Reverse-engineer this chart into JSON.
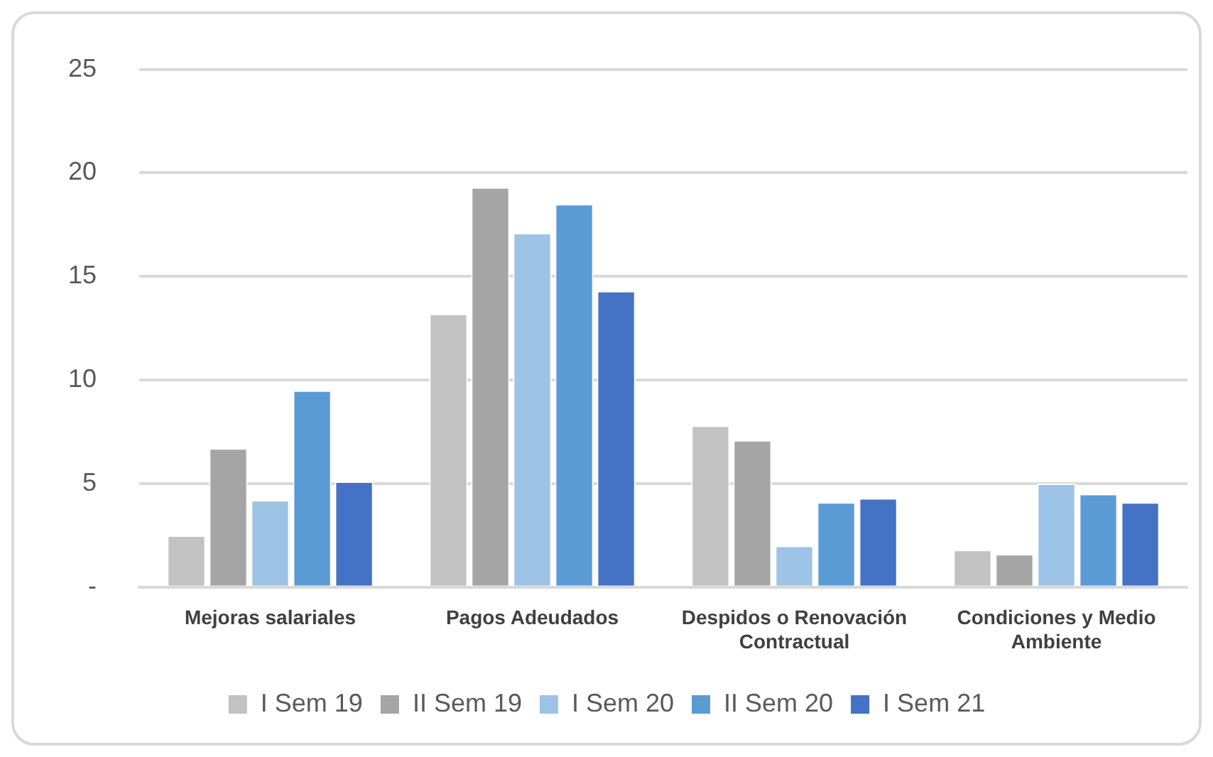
{
  "chart_data": {
    "type": "bar",
    "categories": [
      "Mejoras salariales",
      "Pagos Adeudados",
      "Despidos o Renovación Contractual",
      "Condiciones y Medio Ambiente"
    ],
    "series": [
      {
        "name": "I Sem 19",
        "color": "#c3c2c3",
        "values": [
          2.5,
          13.2,
          7.8,
          1.8
        ]
      },
      {
        "name": "II Sem 19",
        "color": "#a5a5a5",
        "values": [
          6.7,
          19.3,
          7.1,
          1.6
        ]
      },
      {
        "name": "I Sem 20",
        "color": "#9dc3e6",
        "values": [
          4.2,
          17.1,
          2.0,
          5.0
        ]
      },
      {
        "name": "II Sem 20",
        "color": "#5b9bd5",
        "values": [
          9.5,
          18.5,
          4.1,
          4.5
        ]
      },
      {
        "name": "I Sem 21",
        "color": "#4472c4",
        "values": [
          5.1,
          14.3,
          4.3,
          4.1
        ]
      }
    ],
    "ylim": [
      0,
      25
    ],
    "yticks": [
      {
        "value": 0,
        "label": "-"
      },
      5,
      10,
      15,
      20,
      25
    ],
    "grid": "y",
    "legend": "bottom"
  }
}
